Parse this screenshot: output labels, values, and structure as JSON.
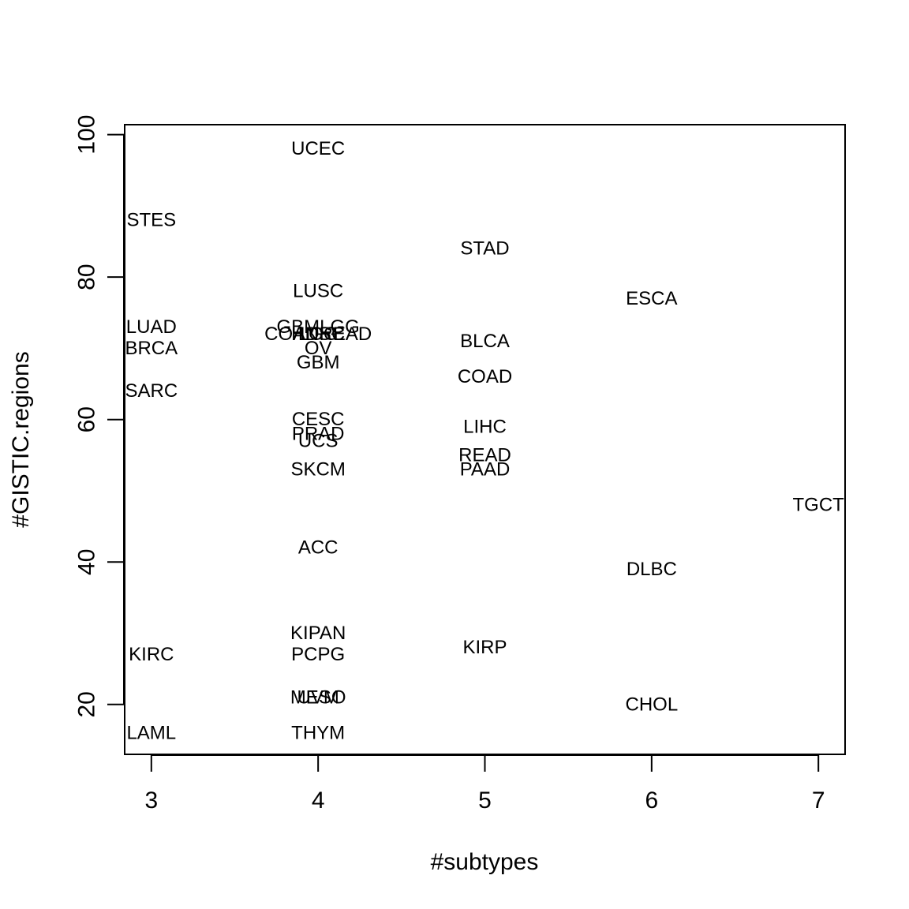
{
  "chart_data": {
    "type": "scatter",
    "title": "",
    "xlabel": "#subtypes",
    "ylabel": "#GISTIC.regions",
    "xlim": [
      2.84,
      7.16
    ],
    "ylim": [
      13.0,
      101.4
    ],
    "x_ticks": [
      3,
      4,
      5,
      6,
      7
    ],
    "y_ticks": [
      20,
      40,
      60,
      80,
      100
    ],
    "grid": false,
    "legend": "none",
    "points": [
      {
        "label": "UCEC",
        "x": 4,
        "y": 98
      },
      {
        "label": "STES",
        "x": 3,
        "y": 88
      },
      {
        "label": "STAD",
        "x": 5,
        "y": 84
      },
      {
        "label": "LUSC",
        "x": 4,
        "y": 78
      },
      {
        "label": "ESCA",
        "x": 6,
        "y": 77
      },
      {
        "label": "LUAD",
        "x": 3,
        "y": 73
      },
      {
        "label": "GBMLGG",
        "x": 4,
        "y": 73
      },
      {
        "label": "COADREAD",
        "x": 4,
        "y": 72
      },
      {
        "label": "HNSC",
        "x": 4,
        "y": 72
      },
      {
        "label": "LGG",
        "x": 4,
        "y": 72
      },
      {
        "label": "BLCA",
        "x": 5,
        "y": 71
      },
      {
        "label": "BRCA",
        "x": 3,
        "y": 70
      },
      {
        "label": "OV",
        "x": 4,
        "y": 70
      },
      {
        "label": "GBM",
        "x": 4,
        "y": 68
      },
      {
        "label": "COAD",
        "x": 5,
        "y": 66
      },
      {
        "label": "SARC",
        "x": 3,
        "y": 64
      },
      {
        "label": "CESC",
        "x": 4,
        "y": 60
      },
      {
        "label": "LIHC",
        "x": 5,
        "y": 59
      },
      {
        "label": "PRAD",
        "x": 4,
        "y": 58
      },
      {
        "label": "UCS",
        "x": 4,
        "y": 57
      },
      {
        "label": "READ",
        "x": 5,
        "y": 55
      },
      {
        "label": "SKCM",
        "x": 4,
        "y": 53
      },
      {
        "label": "PAAD",
        "x": 5,
        "y": 53
      },
      {
        "label": "TGCT",
        "x": 7,
        "y": 48
      },
      {
        "label": "ACC",
        "x": 4,
        "y": 42
      },
      {
        "label": "DLBC",
        "x": 6,
        "y": 39
      },
      {
        "label": "KIPAN",
        "x": 4,
        "y": 30
      },
      {
        "label": "KIRP",
        "x": 5,
        "y": 28
      },
      {
        "label": "KIRC",
        "x": 3,
        "y": 27
      },
      {
        "label": "PCPG",
        "x": 4,
        "y": 27
      },
      {
        "label": "MESO",
        "x": 4,
        "y": 21
      },
      {
        "label": "UVM",
        "x": 4,
        "y": 21
      },
      {
        "label": "CHOL",
        "x": 6,
        "y": 20
      },
      {
        "label": "LAML",
        "x": 3,
        "y": 16
      },
      {
        "label": "THYM",
        "x": 4,
        "y": 16
      }
    ]
  }
}
